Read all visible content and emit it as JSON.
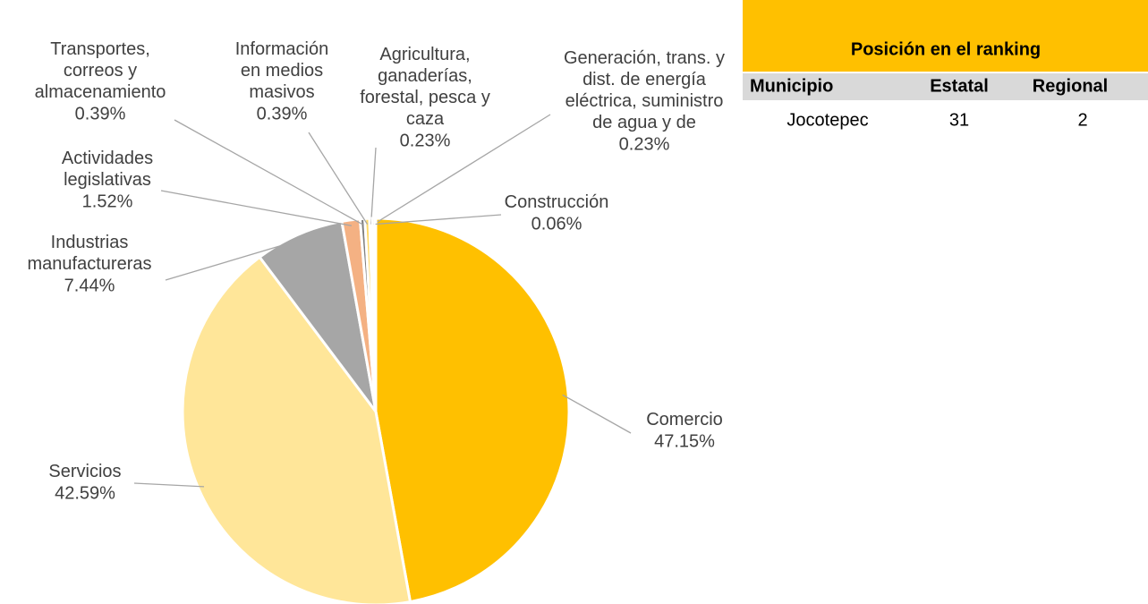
{
  "chart_data": {
    "type": "pie",
    "categories": [
      "Comercio",
      "Servicios",
      "Industrias manufactureras",
      "Actividades legislativas",
      "Transportes, correos y almacenamiento",
      "Información en medios masivos",
      "Agricultura, ganaderías, forestal, pesca y caza",
      "Generación, trans. y dist. de energía eléctrica, suministro de agua y de gas",
      "Construcción"
    ],
    "values": [
      47.15,
      42.59,
      7.44,
      1.52,
      0.39,
      0.39,
      0.23,
      0.23,
      0.06
    ],
    "value_labels": [
      "47.15%",
      "42.59%",
      "7.44%",
      "1.52%",
      "0.39%",
      "0.39%",
      "0.23%",
      "0.23%",
      "0.06%"
    ],
    "colors": [
      "#FFC000",
      "#FFE699",
      "#A6A6A6",
      "#F4B183",
      "#7F7F7F",
      "#FFD966",
      "#C9C9C9",
      "#BF9000",
      "#F8CBAD"
    ]
  },
  "table": {
    "title": "Posición en el ranking",
    "columns": [
      "Municipio",
      "Estatal",
      "Regional"
    ],
    "rows": [
      [
        "Jocotepec",
        "31",
        "2"
      ]
    ]
  }
}
